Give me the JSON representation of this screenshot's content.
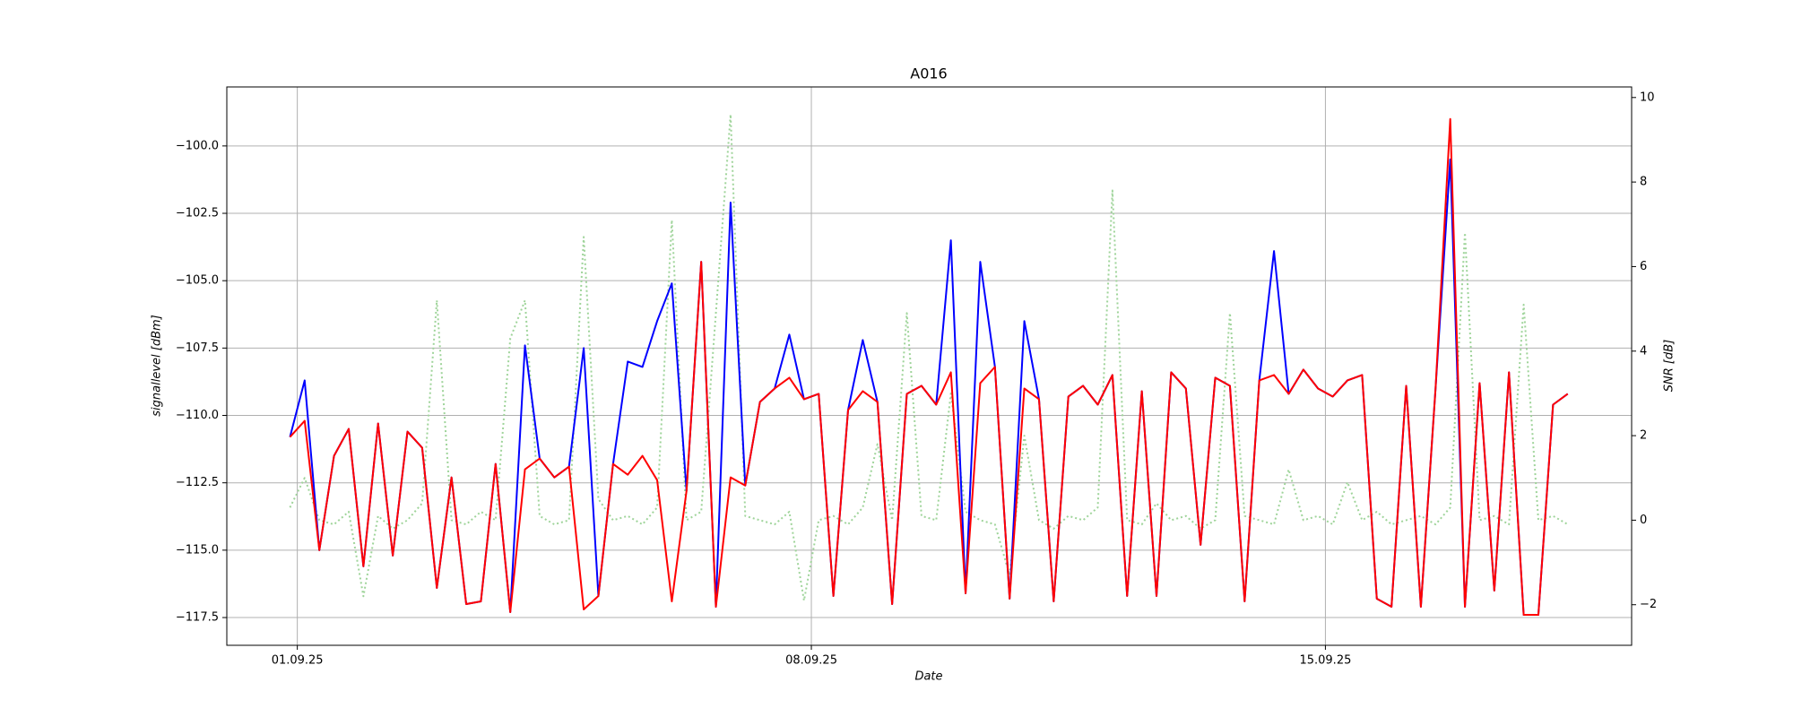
{
  "chart_data": {
    "type": "line",
    "title": "A016",
    "xlabel": "Date",
    "ylabel": "signallevel [dBm]",
    "y2label": "SNR [dB]",
    "x": [
      0.9,
      1.1,
      1.3,
      1.5,
      1.7,
      1.9,
      2.1,
      2.3,
      2.5,
      2.7,
      2.9,
      3.1,
      3.3,
      3.5,
      3.7,
      3.9,
      4.1,
      4.3,
      4.5,
      4.7,
      4.9,
      5.1,
      5.3,
      5.5,
      5.7,
      5.9,
      6.1,
      6.3,
      6.5,
      6.7,
      6.9,
      7.1,
      7.3,
      7.5,
      7.7,
      7.9,
      8.1,
      8.3,
      8.5,
      8.7,
      8.9,
      9.1,
      9.3,
      9.5,
      9.7,
      9.9,
      10.1,
      10.3,
      10.5,
      10.7,
      10.9,
      11.1,
      11.3,
      11.5,
      11.7,
      11.9,
      12.1,
      12.3,
      12.5,
      12.7,
      12.9,
      13.1,
      13.3,
      13.5,
      13.7,
      13.9,
      14.1,
      14.3,
      14.5,
      14.7,
      14.9,
      15.1,
      15.3,
      15.5,
      15.7,
      15.9,
      16.1,
      16.3,
      16.5,
      16.7,
      16.9,
      17.1,
      17.3,
      17.5,
      17.7,
      17.9,
      18.1,
      18.3
    ],
    "xlim": [
      0.04,
      19.17
    ],
    "xticks": [
      {
        "value": 1,
        "label": "01.09.25"
      },
      {
        "value": 8,
        "label": "08.09.25"
      },
      {
        "value": 15,
        "label": "15.09.25"
      }
    ],
    "ylim": [
      -118.53,
      -97.81
    ],
    "yticks": [
      {
        "value": -117.5,
        "label": "−117.5"
      },
      {
        "value": -115,
        "label": "−115.0"
      },
      {
        "value": -112.5,
        "label": "−112.5"
      },
      {
        "value": -110,
        "label": "−110.0"
      },
      {
        "value": -107.5,
        "label": "−107.5"
      },
      {
        "value": -105,
        "label": "−105.0"
      },
      {
        "value": -102.5,
        "label": "−102.5"
      },
      {
        "value": -100,
        "label": "−100.0"
      }
    ],
    "y2lim": [
      -2.96,
      10.25
    ],
    "y2ticks": [
      {
        "value": -2,
        "label": "−2"
      },
      0,
      2,
      4,
      6,
      8,
      10
    ],
    "grid": true,
    "series": [
      {
        "color": "#9fd49a",
        "dash": "dotted",
        "axis": "y2",
        "values": [
          0.3,
          1.0,
          0.0,
          -0.1,
          0.2,
          -1.8,
          0.1,
          -0.2,
          0.0,
          0.4,
          5.2,
          0.0,
          -0.1,
          0.2,
          0.0,
          4.3,
          5.2,
          0.1,
          -0.1,
          0.0,
          6.7,
          0.5,
          0.0,
          0.1,
          -0.1,
          0.3,
          7.1,
          0.0,
          0.2,
          4.9,
          9.6,
          0.1,
          0.0,
          -0.1,
          0.2,
          -1.9,
          0.0,
          0.1,
          -0.1,
          0.3,
          1.8,
          0.0,
          4.9,
          0.1,
          0.0,
          3.0,
          0.2,
          0.0,
          -0.1,
          -1.3,
          2.0,
          0.0,
          -0.2,
          0.1,
          0.0,
          0.3,
          7.8,
          0.0,
          -0.1,
          0.4,
          0.0,
          0.1,
          -0.2,
          0.0,
          4.9,
          0.1,
          0.0,
          -0.1,
          1.2,
          0.0,
          0.1,
          -0.1,
          0.9,
          0.0,
          0.2,
          -0.1,
          0.0,
          0.1,
          -0.1,
          0.3,
          6.8,
          0.0,
          0.1,
          -0.1,
          5.1,
          0.0,
          0.1,
          -0.1
        ]
      },
      {
        "color": "#0000ff",
        "values": [
          -110.8,
          -108.7,
          -115.0,
          -111.5,
          -110.5,
          -115.6,
          -110.3,
          -115.2,
          -110.6,
          -111.2,
          -116.4,
          -112.3,
          -117.0,
          -116.9,
          -111.8,
          -117.3,
          -107.4,
          -111.6,
          -112.3,
          -111.9,
          -107.5,
          -116.7,
          -111.8,
          -108.0,
          -108.2,
          -106.5,
          -105.1,
          -112.8,
          -104.3,
          -117.1,
          -102.1,
          -112.6,
          -109.5,
          -109.0,
          -107.0,
          -109.4,
          -109.2,
          -116.7,
          -109.8,
          -107.2,
          -109.5,
          -117.0,
          -109.2,
          -108.9,
          -109.6,
          -103.5,
          -116.6,
          -104.3,
          -108.2,
          -116.8,
          -106.5,
          -109.4,
          -116.9,
          -109.3,
          -108.9,
          -109.6,
          -108.5,
          -116.7,
          -109.1,
          -116.7,
          -108.4,
          -109.0,
          -114.8,
          -108.6,
          -108.9,
          -116.9,
          -108.7,
          -103.9,
          -109.2,
          -108.3,
          -109.0,
          -109.3,
          -108.7,
          -108.5,
          -116.8,
          -117.1,
          -108.9,
          -117.1,
          -109.0,
          -100.5,
          -117.1,
          -108.8,
          -116.5,
          -108.4,
          -117.4,
          -117.4,
          -109.6,
          -109.2
        ]
      },
      {
        "color": "#ff0000",
        "values": [
          -110.8,
          -110.2,
          -115.0,
          -111.5,
          -110.5,
          -115.6,
          -110.3,
          -115.2,
          -110.6,
          -111.2,
          -116.4,
          -112.3,
          -117.0,
          -116.9,
          -111.8,
          -117.3,
          -112.0,
          -111.6,
          -112.3,
          -111.9,
          -117.2,
          -116.7,
          -111.8,
          -112.2,
          -111.5,
          -112.4,
          -116.9,
          -112.8,
          -104.3,
          -117.1,
          -112.3,
          -112.6,
          -109.5,
          -109.0,
          -108.6,
          -109.4,
          -109.2,
          -116.7,
          -109.8,
          -109.1,
          -109.5,
          -117.0,
          -109.2,
          -108.9,
          -109.6,
          -108.4,
          -116.6,
          -108.8,
          -108.2,
          -116.8,
          -109.0,
          -109.4,
          -116.9,
          -109.3,
          -108.9,
          -109.6,
          -108.5,
          -116.7,
          -109.1,
          -116.7,
          -108.4,
          -109.0,
          -114.8,
          -108.6,
          -108.9,
          -116.9,
          -108.7,
          -108.5,
          -109.2,
          -108.3,
          -109.0,
          -109.3,
          -108.7,
          -108.5,
          -116.8,
          -117.1,
          -108.9,
          -117.1,
          -109.0,
          -99.0,
          -117.1,
          -108.8,
          -116.5,
          -108.4,
          -117.4,
          -117.4,
          -109.6,
          -109.2
        ]
      }
    ]
  }
}
